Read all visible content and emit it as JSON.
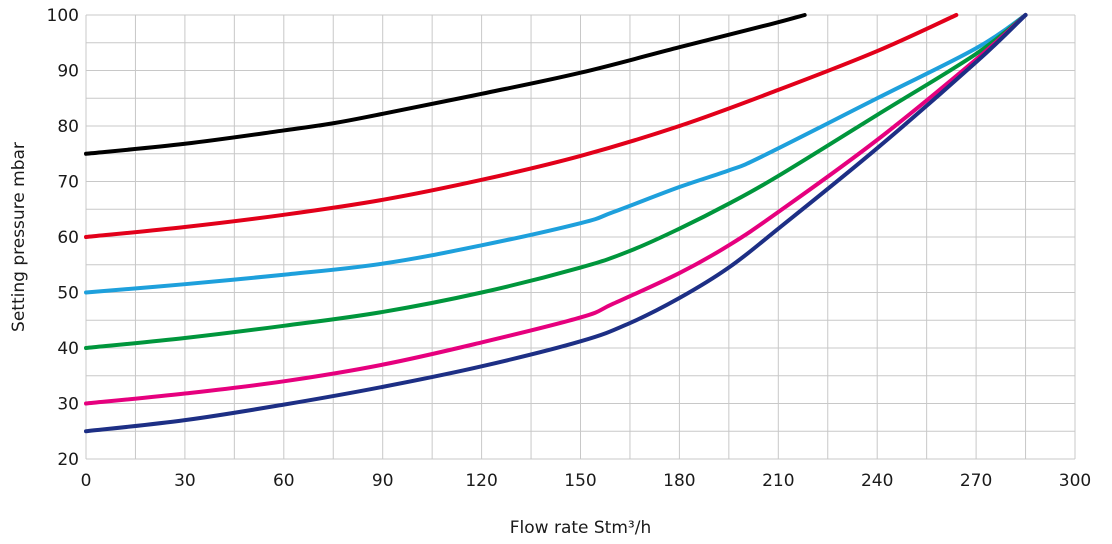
{
  "chart_data": {
    "type": "line",
    "title": "",
    "xlabel": "Flow rate Stm³/h",
    "ylabel": "Setting pressure mbar",
    "xlim": [
      0,
      300
    ],
    "ylim": [
      20,
      100
    ],
    "x_ticks": [
      0,
      30,
      60,
      90,
      120,
      150,
      180,
      210,
      240,
      270,
      300
    ],
    "y_ticks": [
      20,
      30,
      40,
      50,
      60,
      70,
      80,
      90,
      100
    ],
    "x_minor_step": 15,
    "y_minor_step": 5,
    "grid": true,
    "legend": "none",
    "series": [
      {
        "color": "#000000",
        "x": [
          0,
          30,
          60,
          75,
          90,
          120,
          150,
          180,
          200,
          210,
          218
        ],
        "y": [
          75,
          76.8,
          79.2,
          80.5,
          82.2,
          85.8,
          89.6,
          94.2,
          97.2,
          98.7,
          100
        ]
      },
      {
        "color": "#e2001a",
        "x": [
          0,
          30,
          60,
          90,
          120,
          150,
          180,
          210,
          240,
          264
        ],
        "y": [
          60,
          61.8,
          64,
          66.7,
          70.3,
          74.6,
          80,
          86.5,
          93.5,
          100
        ]
      },
      {
        "color": "#1ea0dc",
        "x": [
          0,
          30,
          60,
          90,
          120,
          150,
          160,
          180,
          195,
          205,
          240,
          270,
          285
        ],
        "y": [
          50,
          51.5,
          53.2,
          55.2,
          58.5,
          62.5,
          64.5,
          69,
          72,
          74.5,
          85,
          94,
          100
        ]
      },
      {
        "color": "#00963c",
        "x": [
          0,
          30,
          60,
          90,
          120,
          150,
          165,
          180,
          195,
          210,
          240,
          270,
          285
        ],
        "y": [
          40,
          41.8,
          44,
          46.5,
          50,
          54.5,
          57.5,
          61.5,
          66,
          71,
          82,
          93,
          100
        ]
      },
      {
        "color": "#e6007e",
        "x": [
          0,
          30,
          60,
          90,
          120,
          150,
          160,
          180,
          195,
          210,
          240,
          270,
          285
        ],
        "y": [
          30,
          31.8,
          34,
          37,
          41,
          45.5,
          48,
          53.5,
          58.5,
          64.5,
          77.5,
          92,
          100
        ]
      },
      {
        "color": "#1d2f85",
        "x": [
          0,
          30,
          60,
          90,
          120,
          150,
          165,
          180,
          195,
          210,
          240,
          270,
          285
        ],
        "y": [
          25,
          27,
          29.8,
          33,
          36.7,
          41.2,
          44.5,
          49,
          54.5,
          61.5,
          76,
          91.5,
          100
        ]
      }
    ]
  }
}
